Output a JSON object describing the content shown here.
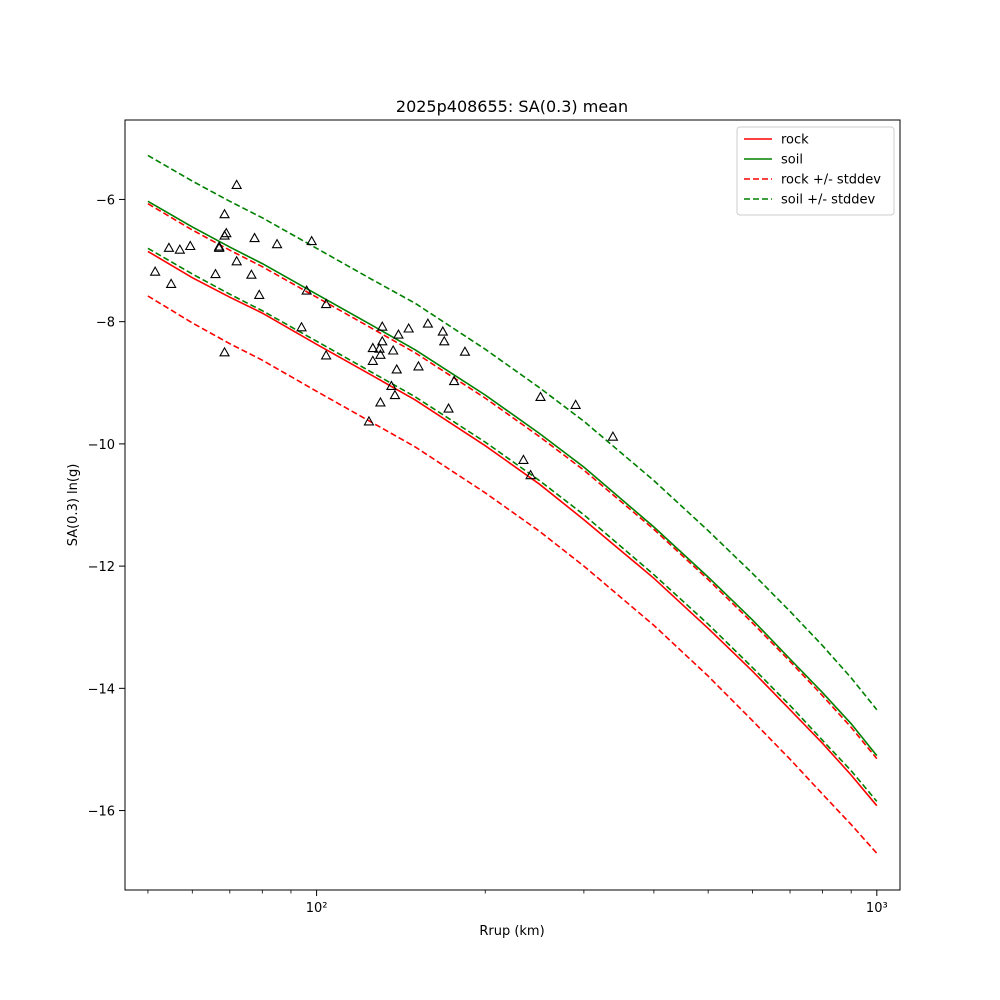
{
  "chart_data": {
    "type": "line",
    "title": "2025p408655: SA(0.3) mean",
    "xlabel": "Rrup (km)",
    "ylabel": "SA(0.3) ln(g)",
    "xscale": "log",
    "xlim": [
      45.5,
      1100
    ],
    "ylim": [
      -17.3,
      -4.7
    ],
    "x_major_ticks": [
      100,
      1000
    ],
    "x_tick_labels": [
      "10²",
      "10³"
    ],
    "y_ticks": [
      -16,
      -14,
      -12,
      -10,
      -8,
      -6
    ],
    "y_tick_labels": [
      "−16",
      "−14",
      "−12",
      "−10",
      "−8",
      "−6"
    ],
    "grid": false,
    "legend_position": "top-right",
    "legend": [
      {
        "label": "rock",
        "color": "#ff0000",
        "style": "solid"
      },
      {
        "label": "soil",
        "color": "#008000",
        "style": "solid"
      },
      {
        "label": "rock +/- stddev",
        "color": "#ff0000",
        "style": "dashed"
      },
      {
        "label": "soil +/- stddev",
        "color": "#008000",
        "style": "dashed"
      }
    ],
    "x": [
      50,
      60,
      70,
      80,
      100,
      125,
      150,
      200,
      250,
      300,
      400,
      500,
      600,
      700,
      800,
      900,
      1000
    ],
    "series": [
      {
        "name": "rock",
        "color": "#ff0000",
        "style": "solid",
        "values": [
          -6.85,
          -7.28,
          -7.6,
          -7.86,
          -8.37,
          -8.87,
          -9.28,
          -10.03,
          -10.66,
          -11.24,
          -12.2,
          -13.02,
          -13.72,
          -14.35,
          -14.9,
          -15.42,
          -15.92
        ]
      },
      {
        "name": "soil",
        "color": "#008000",
        "style": "solid",
        "values": [
          -6.03,
          -6.45,
          -6.78,
          -7.05,
          -7.55,
          -8.05,
          -8.46,
          -9.2,
          -9.83,
          -10.38,
          -11.36,
          -12.18,
          -12.88,
          -13.52,
          -14.07,
          -14.58,
          -15.1
        ]
      },
      {
        "name": "rock +/- stddev",
        "color": "#ff0000",
        "style": "dashed",
        "values": [
          -6.07,
          -6.5,
          -6.83,
          -7.1,
          -7.6,
          -8.1,
          -8.51,
          -9.25,
          -9.88,
          -10.43,
          -11.4,
          -12.22,
          -12.93,
          -13.56,
          -14.12,
          -14.64,
          -15.15
        ]
      },
      {
        "name": "rock +/- stddev",
        "color": "#ff0000",
        "style": "dashed",
        "values": [
          -7.58,
          -8.02,
          -8.36,
          -8.63,
          -9.14,
          -9.64,
          -10.05,
          -10.8,
          -11.43,
          -12.0,
          -12.97,
          -13.8,
          -14.53,
          -15.16,
          -15.73,
          -16.23,
          -16.7
        ]
      },
      {
        "name": "soil +/- stddev",
        "color": "#008000",
        "style": "dashed",
        "values": [
          -5.28,
          -5.7,
          -6.03,
          -6.3,
          -6.8,
          -7.3,
          -7.7,
          -8.45,
          -9.08,
          -9.63,
          -10.6,
          -11.42,
          -12.12,
          -12.74,
          -13.3,
          -13.83,
          -14.35
        ]
      },
      {
        "name": "soil +/- stddev",
        "color": "#008000",
        "style": "dashed",
        "values": [
          -6.8,
          -7.22,
          -7.55,
          -7.82,
          -8.32,
          -8.82,
          -9.23,
          -9.97,
          -10.6,
          -11.16,
          -12.14,
          -12.95,
          -13.66,
          -14.28,
          -14.85,
          -15.35,
          -15.85
        ]
      }
    ],
    "observations": {
      "marker": "triangle-open",
      "color": "#000000",
      "points": [
        [
          51.5,
          -7.19
        ],
        [
          54.5,
          -6.8
        ],
        [
          55,
          -7.39
        ],
        [
          57,
          -6.83
        ],
        [
          59.5,
          -6.77
        ],
        [
          66,
          -7.23
        ],
        [
          67,
          -6.78
        ],
        [
          67,
          -6.8
        ],
        [
          68.5,
          -6.25
        ],
        [
          68.5,
          -6.6
        ],
        [
          69,
          -6.56
        ],
        [
          68.5,
          -8.51
        ],
        [
          72,
          -5.77
        ],
        [
          72,
          -7.02
        ],
        [
          76.5,
          -7.24
        ],
        [
          77.5,
          -6.64
        ],
        [
          79,
          -7.57
        ],
        [
          85,
          -6.74
        ],
        [
          94,
          -8.1
        ],
        [
          96,
          -7.5
        ],
        [
          98,
          -6.69
        ],
        [
          104,
          -7.72
        ],
        [
          104,
          -8.56
        ],
        [
          124,
          -9.64
        ],
        [
          126,
          -8.44
        ],
        [
          126,
          -8.65
        ],
        [
          129.5,
          -8.45
        ],
        [
          130,
          -8.55
        ],
        [
          130,
          -9.33
        ],
        [
          131,
          -8.09
        ],
        [
          131,
          -8.33
        ],
        [
          136,
          -9.06
        ],
        [
          137,
          -8.48
        ],
        [
          138,
          -9.21
        ],
        [
          139,
          -8.79
        ],
        [
          140,
          -8.22
        ],
        [
          146,
          -8.12
        ],
        [
          152,
          -8.74
        ],
        [
          158,
          -8.04
        ],
        [
          168,
          -8.17
        ],
        [
          169,
          -8.33
        ],
        [
          172,
          -9.43
        ],
        [
          176,
          -8.98
        ],
        [
          184,
          -8.5
        ],
        [
          234,
          -10.27
        ],
        [
          241,
          -10.52
        ],
        [
          251,
          -9.24
        ],
        [
          290,
          -9.37
        ],
        [
          338,
          -9.89
        ]
      ]
    }
  }
}
